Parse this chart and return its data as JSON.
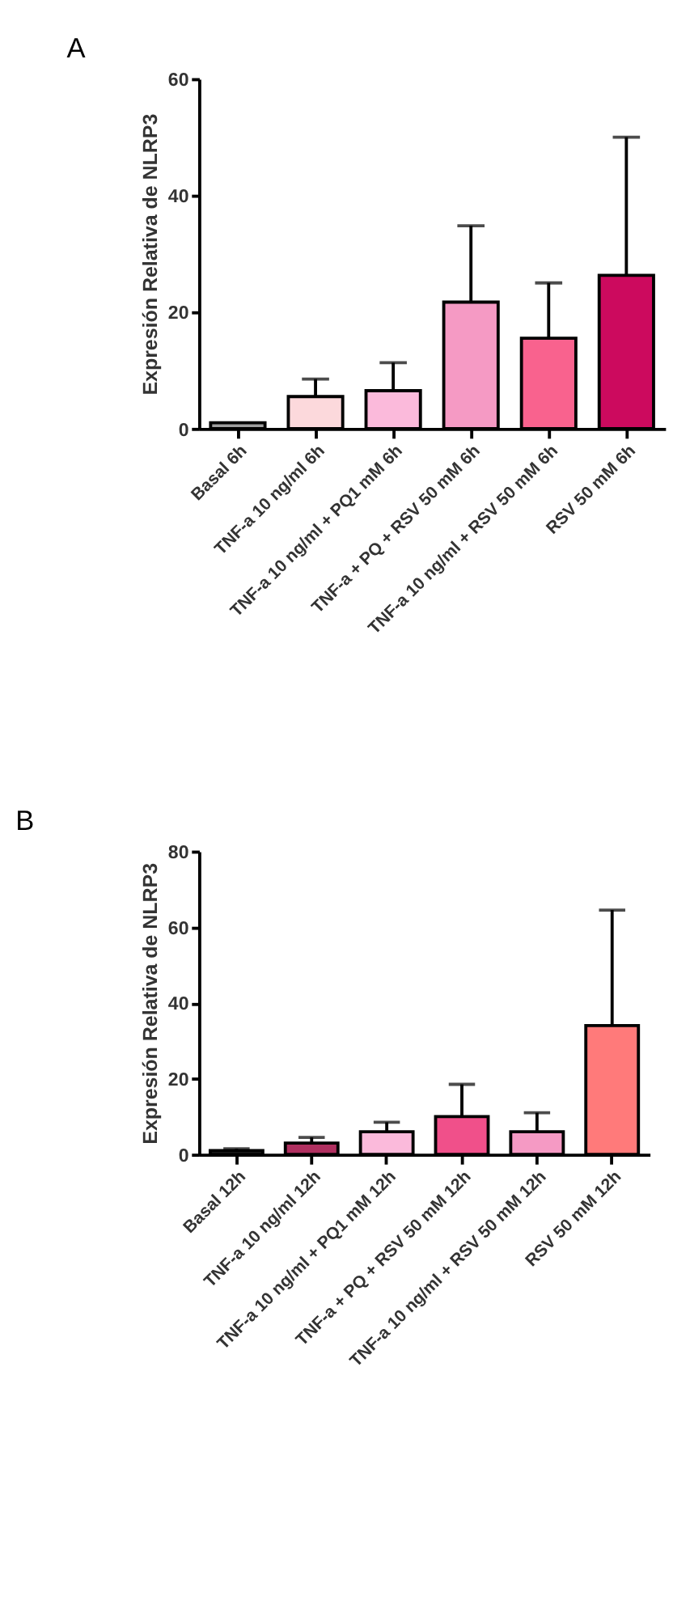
{
  "chart_data": [
    {
      "type": "bar",
      "title": "A",
      "ylabel": "Expresión Relativa de NLRP3",
      "categories": [
        "Basal 6h",
        "TNF-a 10 ng/ml 6h",
        "TNF-a 10 ng/ml + PQ1 mM 6h",
        "TNF-a  + PQ  + RSV 50 mM 6h",
        "TNF-a 10 ng/ml + RSV 50 mM 6h",
        "RSV 50 mM 6h"
      ],
      "values": [
        1,
        5.5,
        6.5,
        21.7,
        15.5,
        26.3
      ],
      "errors": [
        null,
        [
          5.5,
          8.5
        ],
        [
          6.5,
          11.3
        ],
        [
          21.7,
          34.8
        ],
        [
          15.5,
          25
        ],
        [
          26.3,
          50
        ]
      ],
      "colors": [
        "#a0a0a0",
        "#fcd9dc",
        "#fbbadb",
        "#f59ac4",
        "#f9628e",
        "#cc0a5e"
      ],
      "ylim": [
        0,
        60
      ],
      "yticks": [
        0,
        20,
        40,
        60
      ],
      "grid": false,
      "legend": false
    },
    {
      "type": "bar",
      "title": "B",
      "ylabel": "Expresión Relativa de NLRP3",
      "categories": [
        "Basal 12h",
        "TNF-a 10 ng/ml 12h",
        "TNF-a 10 ng/ml + PQ1 mM 12h",
        "TNF-a  + PQ  + RSV 50 mM 12h",
        "TNF-a 10 ng/ml + RSV 50 mM 12h",
        "RSV 50 mM 12h"
      ],
      "values": [
        1,
        3,
        6,
        10,
        6,
        34
      ],
      "errors": [
        [
          1,
          1.5
        ],
        [
          3,
          4.5
        ],
        [
          6,
          8.5
        ],
        [
          10,
          18.5
        ],
        [
          6,
          11
        ],
        [
          34,
          64.5
        ]
      ],
      "colors": [
        "#303030",
        "#b03060",
        "#fbbadb",
        "#f0508a",
        "#f59ac4",
        "#ff7a7a"
      ],
      "ylim": [
        0,
        80
      ],
      "yticks": [
        0,
        20,
        40,
        60,
        80
      ],
      "grid": false,
      "legend": false
    }
  ]
}
